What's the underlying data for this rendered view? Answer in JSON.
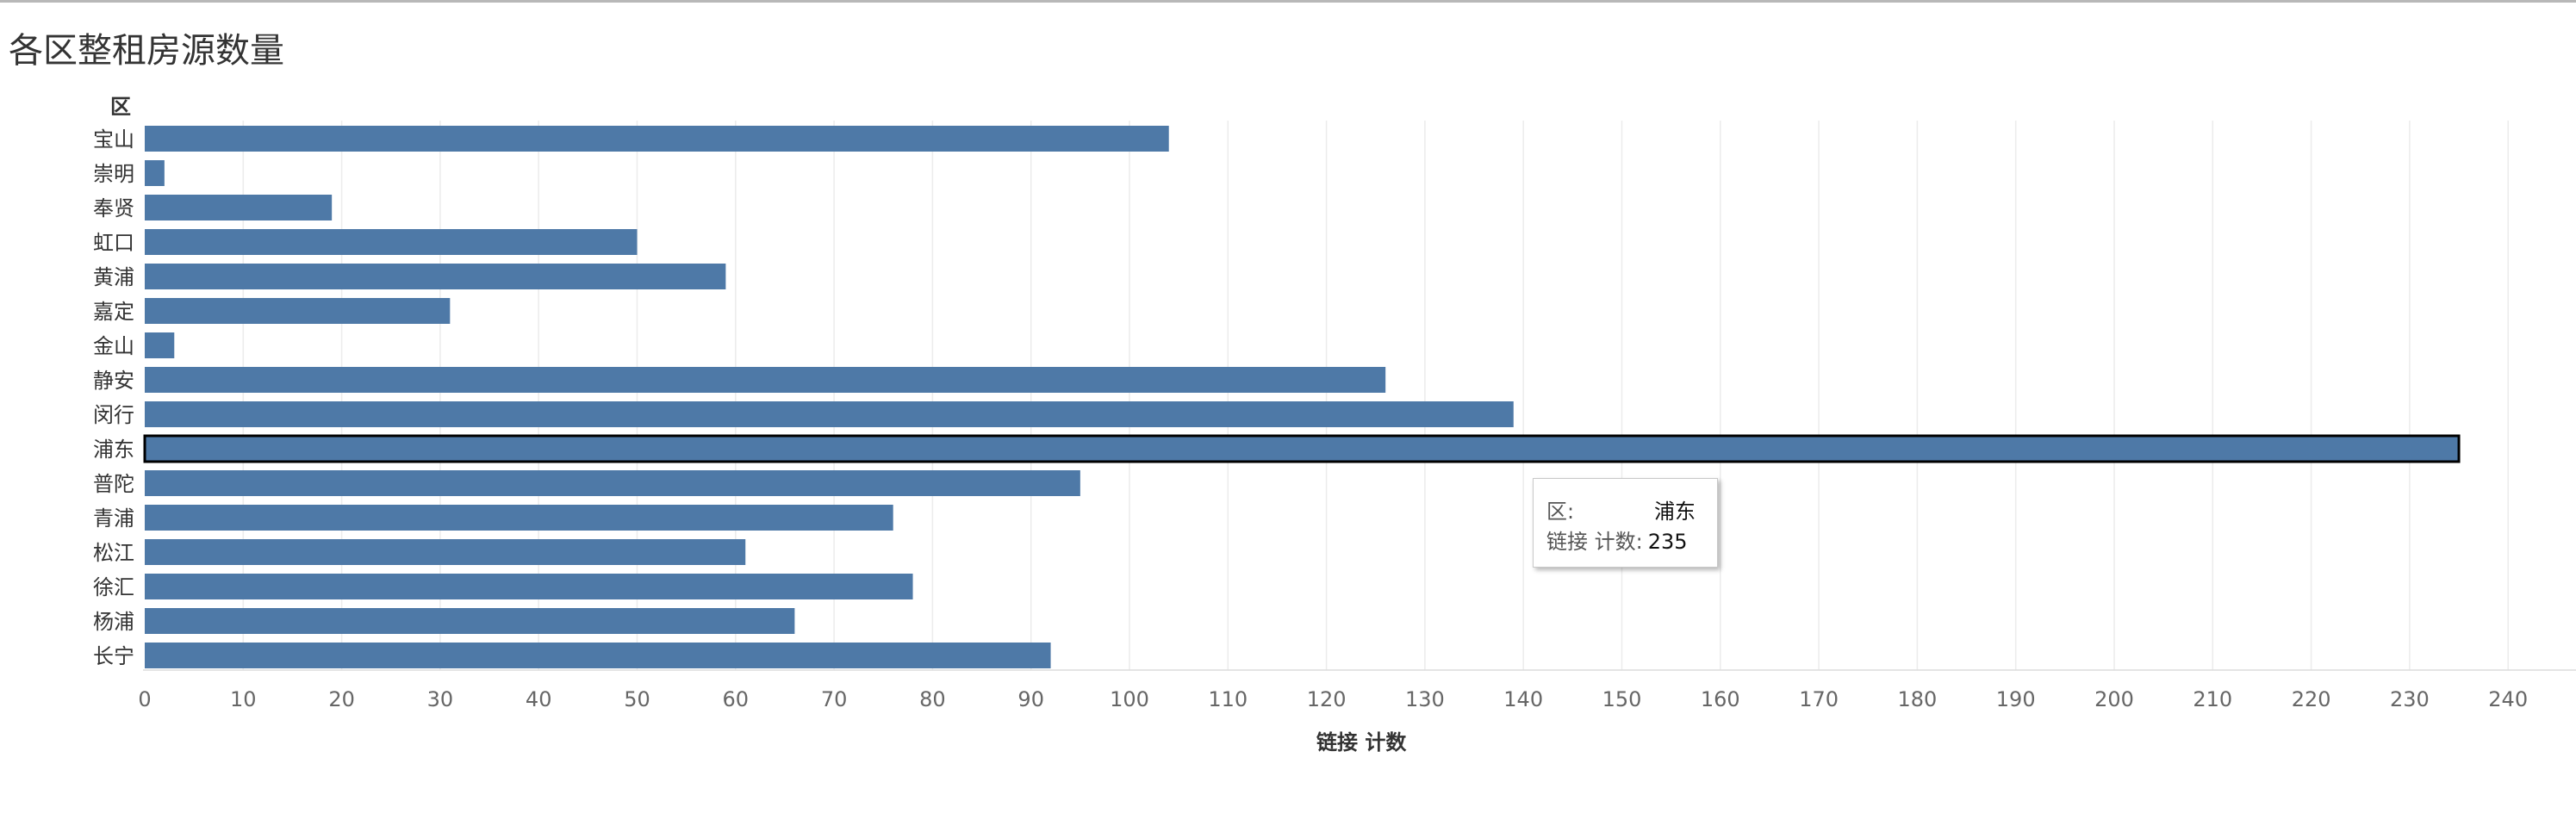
{
  "title": "各区整租房源数量",
  "chart_data": {
    "type": "bar",
    "orientation": "horizontal",
    "row_header": "区",
    "xlabel": "链接 计数",
    "xlim": [
      0,
      245
    ],
    "x_ticks": [
      0,
      10,
      20,
      30,
      40,
      50,
      60,
      70,
      80,
      90,
      100,
      110,
      120,
      130,
      140,
      150,
      160,
      170,
      180,
      190,
      200,
      210,
      220,
      230,
      240
    ],
    "grid": true,
    "bar_color": "#4e79a7",
    "categories": [
      "宝山",
      "崇明",
      "奉贤",
      "虹口",
      "黄浦",
      "嘉定",
      "金山",
      "静安",
      "闵行",
      "浦东",
      "普陀",
      "青浦",
      "松江",
      "徐汇",
      "杨浦",
      "长宁"
    ],
    "values": [
      104,
      2,
      19,
      50,
      59,
      31,
      3,
      126,
      139,
      235,
      95,
      76,
      61,
      78,
      66,
      92
    ],
    "highlighted": "浦东"
  },
  "tooltip": {
    "field1_label": "区:",
    "field1_value": "浦东",
    "field2_label": "链接 计数:",
    "field2_value": "235"
  }
}
